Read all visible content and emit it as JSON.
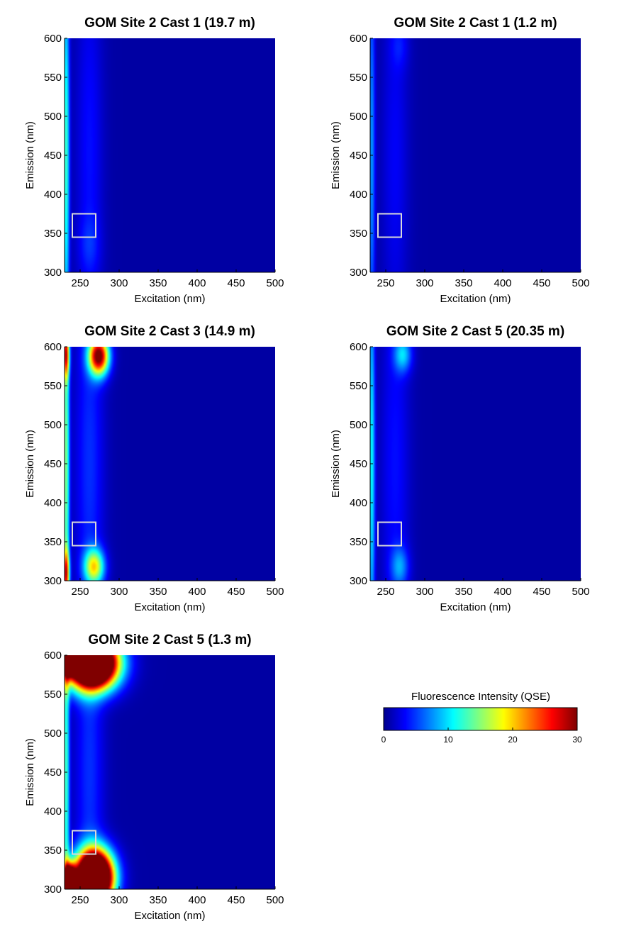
{
  "colormap": {
    "name": "jet",
    "stops": [
      "#00008f",
      "#0000ff",
      "#00ffff",
      "#ffff00",
      "#ff0000",
      "#800000"
    ]
  },
  "chart_data": [
    {
      "type": "heatmap",
      "title": "GOM Site 2 Cast 1 (19.7 m)",
      "xlabel": "Excitation (nm)",
      "ylabel": "Emission (nm)",
      "xlim": [
        230,
        500
      ],
      "ylim": [
        300,
        600
      ],
      "xticks": [
        250,
        300,
        350,
        400,
        450,
        500
      ],
      "yticks": [
        300,
        350,
        400,
        450,
        500,
        550,
        600
      ],
      "zlim": [
        0,
        30
      ],
      "marked_region": {
        "x": [
          240,
          270
        ],
        "y": [
          345,
          375
        ],
        "color": "#d9d9d9"
      },
      "blobs": [
        {
          "x": 232,
          "y": 450,
          "sx": 3,
          "sy": 180,
          "peak": 12
        },
        {
          "x": 262,
          "y": 450,
          "sx": 12,
          "sy": 180,
          "peak": 3
        },
        {
          "x": 262,
          "y": 335,
          "sx": 10,
          "sy": 25,
          "peak": 2
        }
      ]
    },
    {
      "type": "heatmap",
      "title": "GOM Site 2 Cast 1 (1.2 m)",
      "xlabel": "Excitation (nm)",
      "ylabel": "Emission (nm)",
      "xlim": [
        230,
        500
      ],
      "ylim": [
        300,
        600
      ],
      "xticks": [
        250,
        300,
        350,
        400,
        450,
        500
      ],
      "yticks": [
        300,
        350,
        400,
        450,
        500,
        550,
        600
      ],
      "zlim": [
        0,
        30
      ],
      "marked_region": {
        "x": [
          240,
          270
        ],
        "y": [
          345,
          375
        ],
        "color": "#d9d9d9"
      },
      "blobs": [
        {
          "x": 232,
          "y": 450,
          "sx": 3,
          "sy": 180,
          "peak": 7
        },
        {
          "x": 262,
          "y": 450,
          "sx": 12,
          "sy": 180,
          "peak": 2.5
        },
        {
          "x": 268,
          "y": 590,
          "sx": 8,
          "sy": 20,
          "peak": 2
        }
      ]
    },
    {
      "type": "heatmap",
      "title": "GOM Site 2 Cast 3 (14.9 m)",
      "xlabel": "Excitation (nm)",
      "ylabel": "Emission (nm)",
      "xlim": [
        230,
        500
      ],
      "ylim": [
        300,
        600
      ],
      "xticks": [
        250,
        300,
        350,
        400,
        450,
        500
      ],
      "yticks": [
        300,
        350,
        400,
        450,
        500,
        550,
        600
      ],
      "zlim": [
        0,
        30
      ],
      "marked_region": {
        "x": [
          240,
          270
        ],
        "y": [
          345,
          375
        ],
        "color": "#d9d9d9"
      },
      "blobs": [
        {
          "x": 232,
          "y": 450,
          "sx": 3,
          "sy": 180,
          "peak": 14
        },
        {
          "x": 232,
          "y": 590,
          "sx": 3,
          "sy": 20,
          "peak": 18
        },
        {
          "x": 232,
          "y": 310,
          "sx": 3,
          "sy": 20,
          "peak": 18
        },
        {
          "x": 262,
          "y": 450,
          "sx": 13,
          "sy": 180,
          "peak": 4
        },
        {
          "x": 274,
          "y": 588,
          "sx": 9,
          "sy": 17,
          "peak": 30
        },
        {
          "x": 268,
          "y": 318,
          "sx": 9,
          "sy": 16,
          "peak": 17
        }
      ]
    },
    {
      "type": "heatmap",
      "title": "GOM Site 2 Cast 5 (20.35 m)",
      "xlabel": "Excitation (nm)",
      "ylabel": "Emission (nm)",
      "xlim": [
        230,
        500
      ],
      "ylim": [
        300,
        600
      ],
      "xticks": [
        250,
        300,
        350,
        400,
        450,
        500
      ],
      "yticks": [
        300,
        350,
        400,
        450,
        500,
        550,
        600
      ],
      "zlim": [
        0,
        30
      ],
      "marked_region": {
        "x": [
          240,
          270
        ],
        "y": [
          345,
          375
        ],
        "color": "#d9d9d9"
      },
      "blobs": [
        {
          "x": 232,
          "y": 450,
          "sx": 3,
          "sy": 180,
          "peak": 10
        },
        {
          "x": 262,
          "y": 450,
          "sx": 13,
          "sy": 180,
          "peak": 3
        },
        {
          "x": 272,
          "y": 590,
          "sx": 8,
          "sy": 16,
          "peak": 8
        },
        {
          "x": 268,
          "y": 318,
          "sx": 8,
          "sy": 18,
          "peak": 6
        }
      ]
    },
    {
      "type": "heatmap",
      "title": "GOM Site 2 Cast 5 (1.3 m)",
      "xlabel": "Excitation (nm)",
      "ylabel": "Emission (nm)",
      "xlim": [
        230,
        500
      ],
      "ylim": [
        300,
        600
      ],
      "xticks": [
        250,
        300,
        350,
        400,
        450,
        500
      ],
      "yticks": [
        300,
        350,
        400,
        450,
        500,
        550,
        600
      ],
      "zlim": [
        0,
        30
      ],
      "marked_region": {
        "x": [
          240,
          270
        ],
        "y": [
          345,
          375
        ],
        "color": "#d9d9d9"
      },
      "blobs": [
        {
          "x": 232,
          "y": 450,
          "sx": 3,
          "sy": 180,
          "peak": 12
        },
        {
          "x": 262,
          "y": 450,
          "sx": 13,
          "sy": 180,
          "peak": 4
        },
        {
          "x": 265,
          "y": 590,
          "sx": 22,
          "sy": 22,
          "peak": 65
        },
        {
          "x": 236,
          "y": 600,
          "sx": 6,
          "sy": 14,
          "peak": 45
        },
        {
          "x": 268,
          "y": 315,
          "sx": 16,
          "sy": 23,
          "peak": 65
        },
        {
          "x": 236,
          "y": 312,
          "sx": 6,
          "sy": 14,
          "peak": 40
        }
      ]
    }
  ],
  "colorbar": {
    "title": "Fluorescence Intensity (QSE)",
    "ticks": [
      0,
      10,
      20,
      30
    ],
    "range": [
      0,
      30
    ]
  }
}
